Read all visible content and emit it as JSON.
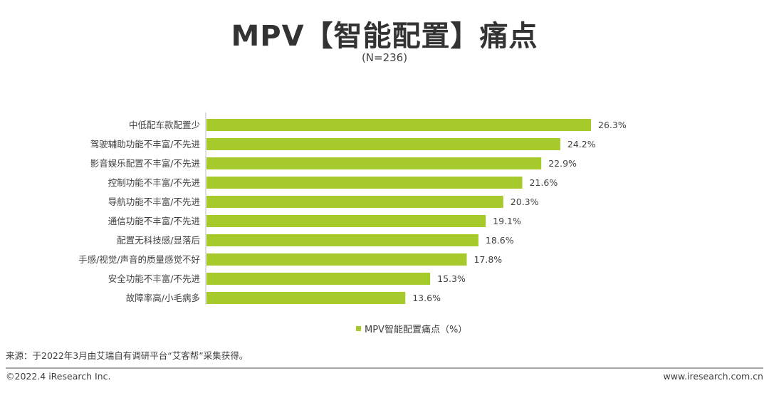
{
  "header": {
    "title": "MPV【智能配置】痛点",
    "subtitle": "(N=236)"
  },
  "chart_data": {
    "type": "bar",
    "orientation": "horizontal",
    "categories": [
      "中低配车款配置少",
      "驾驶辅助功能不丰富/不先进",
      "影音娱乐配置不丰富/不先进",
      "控制功能不丰富/不先进",
      "导航功能不丰富/不先进",
      "通信功能不丰富/不先进",
      "配置无科技感/显落后",
      "手感/视觉/声音的质量感觉不好",
      "安全功能不丰富/不先进",
      "故障率高/小毛病多"
    ],
    "series": [
      {
        "name": "MPV智能配置痛点（%）",
        "values": [
          26.3,
          24.2,
          22.9,
          21.6,
          20.3,
          19.1,
          18.6,
          17.8,
          15.3,
          13.6
        ],
        "value_labels": [
          "26.3%",
          "24.2%",
          "22.9%",
          "21.6%",
          "20.3%",
          "19.1%",
          "18.6%",
          "17.8%",
          "15.3%",
          "13.6%"
        ],
        "color": "#a6c92b"
      }
    ],
    "legend_position": "bottom",
    "grid": false,
    "xlim": [
      0,
      30
    ]
  },
  "legend": {
    "label": "MPV智能配置痛点（%）",
    "color": "#a6c92b"
  },
  "footer": {
    "source": "来源：于2022年3月由艾瑞自有调研平台“艾客帮”采集获得。",
    "copyright": "©2022.4 iResearch Inc.",
    "website": "www.iresearch.com.cn"
  }
}
